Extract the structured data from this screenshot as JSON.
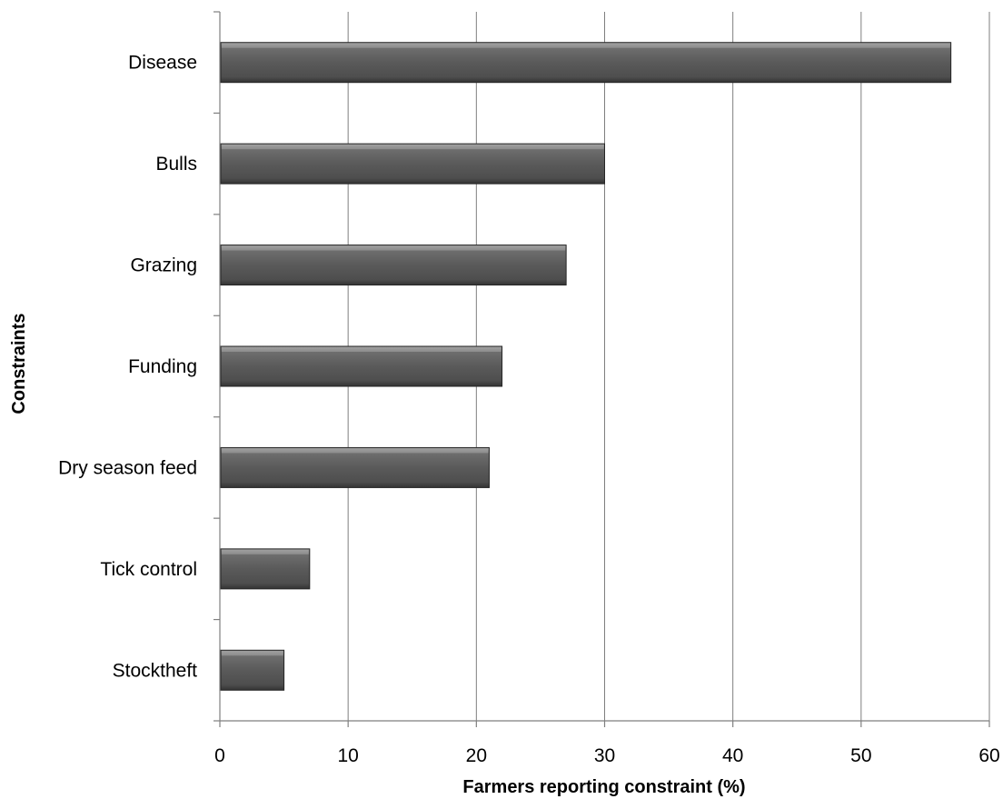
{
  "chart_data": {
    "type": "bar",
    "orientation": "horizontal",
    "categories": [
      "Disease",
      "Bulls",
      "Grazing",
      "Funding",
      "Dry season feed",
      "Tick control",
      "Stocktheft"
    ],
    "values": [
      57,
      30,
      27,
      22,
      21,
      7,
      5
    ],
    "xlabel": "Farmers reporting constraint (%)",
    "ylabel": "Constraints",
    "xlim": [
      0,
      60
    ],
    "xticks": [
      "0",
      "10",
      "20",
      "30",
      "40",
      "50",
      "60"
    ],
    "grid": "vertical",
    "legend": "none",
    "bar_color": "#595959"
  }
}
